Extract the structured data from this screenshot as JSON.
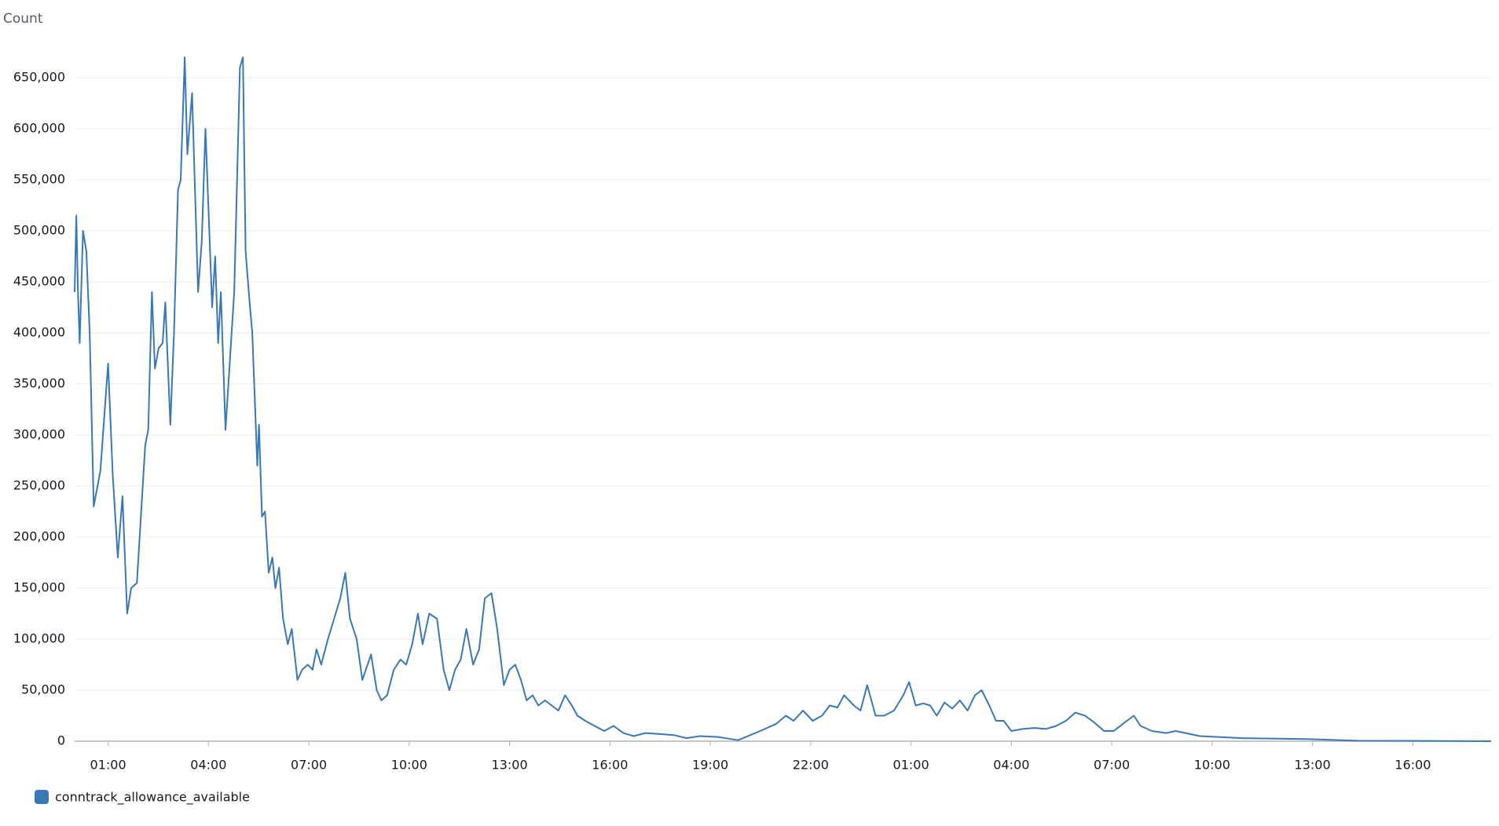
{
  "chart_data": {
    "type": "line",
    "y_label": "Count",
    "ylim": [
      0,
      680000
    ],
    "yticks": [
      0,
      {
        "value": 50000,
        "label": "50,000"
      },
      {
        "value": 100000,
        "label": "100,000"
      },
      {
        "value": 150000,
        "label": "150,000"
      },
      {
        "value": 200000,
        "label": "200,000"
      },
      {
        "value": 250000,
        "label": "250,000"
      },
      {
        "value": 300000,
        "label": "300,000"
      },
      {
        "value": 350000,
        "label": "350,000"
      },
      {
        "value": 400000,
        "label": "400,000"
      },
      {
        "value": 450000,
        "label": "450,000"
      },
      {
        "value": 500000,
        "label": "500,000"
      },
      {
        "value": 550000,
        "label": "550,000"
      },
      {
        "value": 600000,
        "label": "600,000"
      },
      {
        "value": 650000,
        "label": "650,000"
      }
    ],
    "xlim": [
      0,
      42.34
    ],
    "xticks": [
      {
        "value": 1,
        "label": "01:00"
      },
      {
        "value": 4,
        "label": "04:00"
      },
      {
        "value": 7,
        "label": "07:00"
      },
      {
        "value": 10,
        "label": "10:00"
      },
      {
        "value": 13,
        "label": "13:00"
      },
      {
        "value": 16,
        "label": "16:00"
      },
      {
        "value": 19,
        "label": "19:00"
      },
      {
        "value": 22,
        "label": "22:00"
      },
      {
        "value": 25,
        "label": "01:00"
      },
      {
        "value": 28,
        "label": "04:00"
      },
      {
        "value": 31,
        "label": "07:00"
      },
      {
        "value": 34,
        "label": "10:00"
      },
      {
        "value": 37,
        "label": "13:00"
      },
      {
        "value": 40,
        "label": "16:00"
      }
    ],
    "grid": true,
    "legend": "bottom-left",
    "x": [
      0,
      0.05,
      0.1,
      0.15,
      0.25,
      0.35,
      0.45,
      0.57,
      0.77,
      1.0,
      1.14,
      1.29,
      1.43,
      1.57,
      1.69,
      1.86,
      2.11,
      2.2,
      2.31,
      2.4,
      2.51,
      2.63,
      2.71,
      2.86,
      2.97,
      3.09,
      3.17,
      3.29,
      3.37,
      3.51,
      3.69,
      3.8,
      3.91,
      4.06,
      4.11,
      4.2,
      4.29,
      4.37,
      4.51,
      4.77,
      4.94,
      5.03,
      5.11,
      5.23,
      5.31,
      5.46,
      5.51,
      5.6,
      5.69,
      5.8,
      5.91,
      6.0,
      6.11,
      6.23,
      6.37,
      6.49,
      6.66,
      6.8,
      6.97,
      7.11,
      7.23,
      7.37,
      7.57,
      7.71,
      7.94,
      8.09,
      8.23,
      8.43,
      8.6,
      8.86,
      9.03,
      9.17,
      9.34,
      9.54,
      9.74,
      9.91,
      10.09,
      10.26,
      10.4,
      10.6,
      10.83,
      11.03,
      11.2,
      11.37,
      11.54,
      11.71,
      11.91,
      12.09,
      12.26,
      12.46,
      12.63,
      12.83,
      13.0,
      13.17,
      13.34,
      13.51,
      13.69,
      13.86,
      14.06,
      14.26,
      14.46,
      14.66,
      14.86,
      15.03,
      15.26,
      15.54,
      15.83,
      16.11,
      16.4,
      16.71,
      17.06,
      17.49,
      17.91,
      18.29,
      18.69,
      19.26,
      19.83,
      20.49,
      20.97,
      21.26,
      21.49,
      21.77,
      22.06,
      22.34,
      22.57,
      22.8,
      23.0,
      23.29,
      23.49,
      23.69,
      23.94,
      24.2,
      24.49,
      24.77,
      24.94,
      25.14,
      25.37,
      25.57,
      25.77,
      26.0,
      26.23,
      26.46,
      26.69,
      26.91,
      27.11,
      27.34,
      27.54,
      27.77,
      28.0,
      28.34,
      28.69,
      29.03,
      29.34,
      29.63,
      29.91,
      30.2,
      30.49,
      30.77,
      31.06,
      31.37,
      31.66,
      31.86,
      32.2,
      32.63,
      32.91,
      33.2,
      33.63,
      34.91,
      36.91,
      38.34,
      42.34
    ],
    "series": [
      {
        "name": "conntrack_allowance_available",
        "color": "#3a78b5",
        "values": [
          440000,
          515000,
          440000,
          390000,
          500000,
          480000,
          400000,
          230000,
          265000,
          370000,
          260000,
          180000,
          240000,
          125000,
          150000,
          155000,
          290000,
          305000,
          440000,
          365000,
          385000,
          390000,
          430000,
          310000,
          400000,
          540000,
          550000,
          670000,
          575000,
          635000,
          440000,
          490000,
          600000,
          470000,
          425000,
          475000,
          390000,
          440000,
          305000,
          440000,
          660000,
          670000,
          480000,
          430000,
          400000,
          270000,
          310000,
          220000,
          225000,
          165000,
          180000,
          150000,
          170000,
          120000,
          95000,
          110000,
          60000,
          70000,
          75000,
          70000,
          90000,
          75000,
          100000,
          115000,
          140000,
          165000,
          120000,
          100000,
          60000,
          85000,
          50000,
          40000,
          45000,
          70000,
          80000,
          75000,
          95000,
          125000,
          95000,
          125000,
          120000,
          70000,
          50000,
          70000,
          80000,
          110000,
          75000,
          90000,
          140000,
          145000,
          110000,
          55000,
          70000,
          75000,
          60000,
          40000,
          45000,
          35000,
          40000,
          35000,
          30000,
          45000,
          35000,
          25000,
          20000,
          15000,
          10000,
          15000,
          8000,
          5000,
          8000,
          7000,
          6000,
          3000,
          5000,
          4000,
          1000,
          10000,
          17000,
          25000,
          20000,
          30000,
          20000,
          25000,
          35000,
          33000,
          45000,
          35000,
          30000,
          55000,
          25000,
          25000,
          30000,
          45000,
          58000,
          35000,
          37000,
          35000,
          25000,
          38000,
          32000,
          40000,
          30000,
          45000,
          50000,
          35000,
          20000,
          20000,
          10000,
          12000,
          13000,
          12000,
          15000,
          20000,
          28000,
          25000,
          18000,
          10000,
          10000,
          18000,
          25000,
          15000,
          10000,
          8000,
          10000,
          8000,
          5000,
          3000,
          2000,
          500,
          0
        ]
      }
    ]
  }
}
